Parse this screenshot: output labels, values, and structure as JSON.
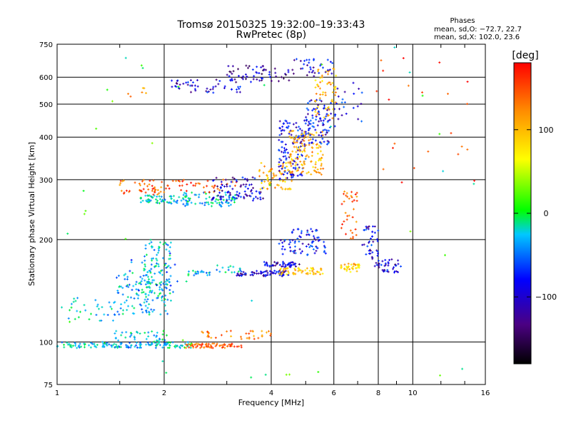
{
  "chart_data": {
    "type": "scatter",
    "title": "Tromsø 20150325 19:32:00–19:33:43",
    "subtitle": "RwPretec (8p)",
    "stats": {
      "heading": "Phases",
      "line1": "mean, sd,O: −72.7, 22.7",
      "line2": "mean, sd,X: 102.0, 23.6"
    },
    "xlabel": "Frequency [MHz]",
    "ylabel": "Stationary phase Virtual Height [km]",
    "xscale": "log",
    "yscale": "log",
    "xlim": [
      1,
      16
    ],
    "ylim": [
      75,
      750
    ],
    "xticks": [
      1,
      2,
      4,
      6,
      8,
      10,
      16
    ],
    "xtick_labels": [
      "1",
      "2",
      "4",
      "6",
      "8",
      "10",
      "16"
    ],
    "yticks": [
      75,
      100,
      200,
      300,
      400,
      500,
      600,
      750
    ],
    "ytick_labels": [
      "75",
      "100",
      "200",
      "300",
      "400",
      "500",
      "600",
      "750"
    ],
    "grid": true,
    "colorbar": {
      "label": "[deg]",
      "range": [
        -180,
        180
      ],
      "ticks": [
        100,
        0,
        -100
      ],
      "tick_labels": [
        "100",
        "0",
        "−100"
      ],
      "colors": [
        "#000000",
        "#4b0082",
        "#0000ff",
        "#00c8ff",
        "#00ff00",
        "#ffff00",
        "#ff8c00",
        "#ff0000"
      ]
    },
    "series": [
      {
        "x_range": [
          1.0,
          1.45
        ],
        "y_range": [
          96,
          100
        ],
        "phase": -40,
        "n": 55
      },
      {
        "x_range": [
          1.0,
          1.45
        ],
        "y_range": [
          115,
          135
        ],
        "phase": -40,
        "n": 30
      },
      {
        "x_range": [
          1.45,
          2.05
        ],
        "y_range": [
          96,
          100
        ],
        "phase": -50,
        "n": 60
      },
      {
        "x_range": [
          1.45,
          2.05
        ],
        "y_range": [
          100,
          108
        ],
        "phase": -35,
        "n": 40
      },
      {
        "x_range": [
          1.45,
          1.85
        ],
        "y_range": [
          120,
          160
        ],
        "phase": -45,
        "n": 80
      },
      {
        "x_range": [
          1.75,
          2.1
        ],
        "y_range": [
          120,
          200
        ],
        "phase": -40,
        "n": 130
      },
      {
        "x_range": [
          1.6,
          2.2
        ],
        "y_range": [
          140,
          185
        ],
        "phase": -70,
        "n": 20
      },
      {
        "x_range": [
          2.0,
          2.4
        ],
        "y_range": [
          96,
          100
        ],
        "phase": -30,
        "n": 30
      },
      {
        "x_range": [
          2.3,
          3.3
        ],
        "y_range": [
          96,
          99
        ],
        "phase": 140,
        "n": 70
      },
      {
        "x_range": [
          2.5,
          4.0
        ],
        "y_range": [
          102,
          108
        ],
        "phase": 130,
        "n": 35
      },
      {
        "x_range": [
          2.3,
          2.7
        ],
        "y_range": [
          157,
          162
        ],
        "phase": -40,
        "n": 20
      },
      {
        "x_range": [
          2.8,
          3.3
        ],
        "y_range": [
          160,
          168
        ],
        "phase": -40,
        "n": 15
      },
      {
        "x_range": [
          3.2,
          4.5
        ],
        "y_range": [
          156,
          162
        ],
        "phase": -110,
        "n": 70
      },
      {
        "x_range": [
          3.8,
          4.8
        ],
        "y_range": [
          166,
          172
        ],
        "phase": -110,
        "n": 50
      },
      {
        "x_range": [
          4.2,
          5.6
        ],
        "y_range": [
          158,
          165
        ],
        "phase": 90,
        "n": 55
      },
      {
        "x_range": [
          4.2,
          5.7
        ],
        "y_range": [
          180,
          200
        ],
        "phase": -100,
        "n": 55
      },
      {
        "x_range": [
          4.5,
          5.5
        ],
        "y_range": [
          200,
          215
        ],
        "phase": -90,
        "n": 25
      },
      {
        "x_range": [
          6.2,
          7.1
        ],
        "y_range": [
          160,
          170
        ],
        "phase": 90,
        "n": 35
      },
      {
        "x_range": [
          6.3,
          7.0
        ],
        "y_range": [
          200,
          280
        ],
        "phase": 140,
        "n": 35
      },
      {
        "x_range": [
          7.2,
          8.0
        ],
        "y_range": [
          175,
          220
        ],
        "phase": -100,
        "n": 40
      },
      {
        "x_range": [
          7.8,
          9.3
        ],
        "y_range": [
          160,
          175
        ],
        "phase": -110,
        "n": 40
      },
      {
        "x_range": [
          1.5,
          2.0
        ],
        "y_range": [
          270,
          300
        ],
        "phase": 140,
        "n": 45
      },
      {
        "x_range": [
          1.7,
          2.4
        ],
        "y_range": [
          255,
          270
        ],
        "phase": -40,
        "n": 60
      },
      {
        "x_range": [
          2.2,
          3.2
        ],
        "y_range": [
          250,
          275
        ],
        "phase": -40,
        "n": 80
      },
      {
        "x_range": [
          2.0,
          3.2
        ],
        "y_range": [
          275,
          300
        ],
        "phase": 150,
        "n": 40
      },
      {
        "x_range": [
          2.7,
          3.8
        ],
        "y_range": [
          260,
          305
        ],
        "phase": -110,
        "n": 90
      },
      {
        "x_range": [
          3.7,
          4.6
        ],
        "y_range": [
          280,
          340
        ],
        "phase": 100,
        "n": 70
      },
      {
        "x_range": [
          4.2,
          5.0
        ],
        "y_range": [
          300,
          450
        ],
        "phase": -100,
        "n": 120
      },
      {
        "x_range": [
          4.5,
          5.6
        ],
        "y_range": [
          310,
          420
        ],
        "phase": 100,
        "n": 120
      },
      {
        "x_range": [
          5.0,
          5.9
        ],
        "y_range": [
          380,
          520
        ],
        "phase": -100,
        "n": 90
      },
      {
        "x_range": [
          5.3,
          6.1
        ],
        "y_range": [
          450,
          650
        ],
        "phase": 100,
        "n": 60
      },
      {
        "x_range": [
          6.0,
          7.2
        ],
        "y_range": [
          430,
          580
        ],
        "phase": -100,
        "n": 25
      },
      {
        "x_range": [
          2.1,
          3.3
        ],
        "y_range": [
          540,
          590
        ],
        "phase": -110,
        "n": 50
      },
      {
        "x_range": [
          3.0,
          4.5
        ],
        "y_range": [
          580,
          650
        ],
        "phase": -120,
        "n": 60
      },
      {
        "x_range": [
          4.5,
          6.0
        ],
        "y_range": [
          600,
          680
        ],
        "phase": -110,
        "n": 35
      },
      {
        "x_range": [
          1.5,
          1.9
        ],
        "y_range": [
          520,
          560
        ],
        "phase": 110,
        "n": 6
      },
      {
        "x_range": [
          7.8,
          15
        ],
        "y_range": [
          260,
          700
        ],
        "phase": 150,
        "n": 22
      },
      {
        "x_range": [
          1.0,
          16.0
        ],
        "y_range": [
          75,
          750
        ],
        "phase": 0,
        "n": 40
      }
    ]
  }
}
